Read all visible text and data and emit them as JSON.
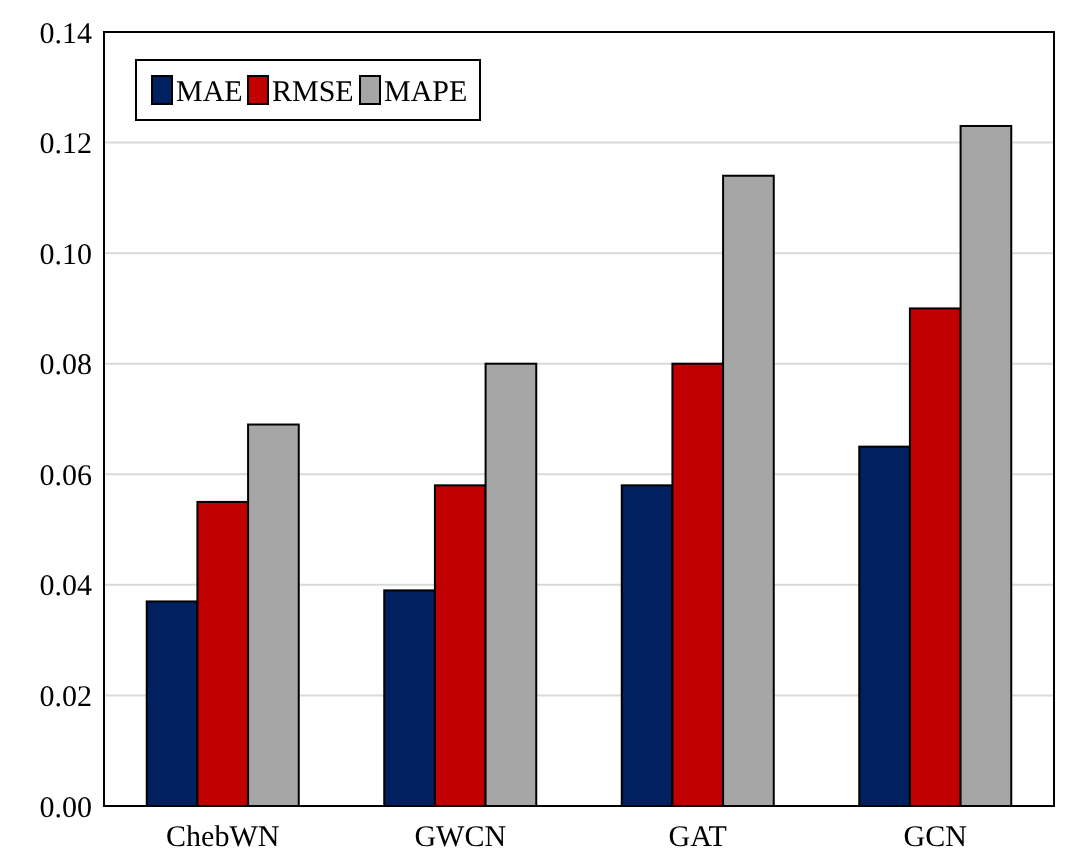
{
  "chart_data": {
    "type": "bar",
    "categories": [
      "ChebWN",
      "GWCN",
      "GAT",
      "GCN"
    ],
    "series": [
      {
        "name": "MAE",
        "color": "#002060",
        "values": [
          0.037,
          0.039,
          0.058,
          0.065
        ]
      },
      {
        "name": "RMSE",
        "color": "#c00000",
        "values": [
          0.055,
          0.058,
          0.08,
          0.09
        ]
      },
      {
        "name": "MAPE",
        "color": "#a6a6a6",
        "values": [
          0.069,
          0.08,
          0.114,
          0.123
        ]
      }
    ],
    "ylim": [
      0,
      0.14
    ],
    "yticks": [
      {
        "value": 0,
        "label": "0.00"
      },
      {
        "value": 0.02,
        "label": "0.02"
      },
      {
        "value": 0.04,
        "label": "0.04"
      },
      {
        "value": 0.06,
        "label": "0.06"
      },
      {
        "value": 0.08,
        "label": "0.08"
      },
      {
        "value": 0.1,
        "label": "0.10"
      },
      {
        "value": 0.12,
        "label": "0.12"
      },
      {
        "value": 0.14,
        "label": "0.14"
      }
    ],
    "grid": "y",
    "legend": "top left"
  }
}
